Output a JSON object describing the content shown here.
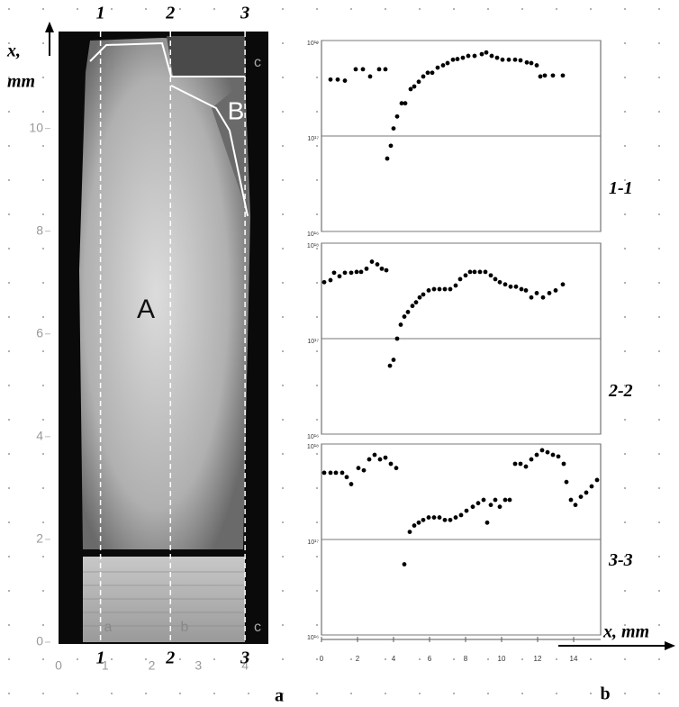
{
  "micrograph": {
    "ylabel": [
      "x,",
      "mm"
    ],
    "ylim": [
      0,
      11.8
    ],
    "yticks": [
      0,
      2,
      4,
      6,
      8,
      10
    ],
    "xlim": [
      0,
      4.5
    ],
    "xticks": [
      0,
      1,
      2,
      3,
      4
    ],
    "sections": [
      {
        "x": 0.9,
        "label": "1"
      },
      {
        "x": 2.4,
        "label": "2"
      },
      {
        "x": 4,
        "label": "3"
      }
    ],
    "zones": [
      "A",
      "B"
    ],
    "region_labels": [
      "a",
      "c",
      "a",
      "b",
      "c"
    ],
    "panel_label": "a"
  },
  "panel_label": "b",
  "chart_data": [
    {
      "type": "scatter",
      "title": "1-1",
      "color": "#000000",
      "ylog": true,
      "grid": true,
      "xlim": [
        0,
        15.5
      ],
      "ylim": [
        1e+16,
        1e+18
      ],
      "yticks": [
        {
          "value": 1e+16,
          "label": "10¹⁶"
        },
        {
          "value": 1e+17,
          "label": "10¹⁷"
        },
        {
          "value": 1e+18,
          "label": "10¹⁸"
        }
      ],
      "x": [
        0.5,
        0.9,
        1.3,
        1.9,
        2.3,
        2.7,
        3.2,
        3.55,
        3.65,
        3.85,
        4.0,
        4.2,
        4.45,
        4.65,
        4.95,
        5.15,
        5.4,
        5.65,
        5.9,
        6.15,
        6.45,
        6.75,
        7.0,
        7.3,
        7.55,
        7.85,
        8.15,
        8.5,
        8.9,
        9.15,
        9.45,
        9.75,
        10.05,
        10.4,
        10.75,
        11.05,
        11.4,
        11.65,
        11.95,
        12.15,
        12.4,
        12.85,
        13.4
      ],
      "values": [
        3.9e+17,
        3.9e+17,
        3.8e+17,
        5e+17,
        5e+17,
        4.2e+17,
        5e+17,
        5e+17,
        5.8e+16,
        7.9e+16,
        1.2e+17,
        1.6e+17,
        2.2e+17,
        2.2e+17,
        3.1e+17,
        3.3e+17,
        3.7e+17,
        4.2e+17,
        4.6e+17,
        4.6e+17,
        5.2e+17,
        5.5e+17,
        5.8e+17,
        6.3e+17,
        6.4e+17,
        6.6e+17,
        6.9e+17,
        6.9e+17,
        7.2e+17,
        7.5e+17,
        6.9e+17,
        6.6e+17,
        6.3e+17,
        6.3e+17,
        6.3e+17,
        6.2e+17,
        5.9e+17,
        5.8e+17,
        5.5e+17,
        4.2e+17,
        4.3e+17,
        4.3e+17,
        4.3e+17
      ]
    },
    {
      "type": "scatter",
      "title": "2-2",
      "color": "#000000",
      "ylog": true,
      "grid": true,
      "xlim": [
        0,
        15.5
      ],
      "ylim": [
        1e+16,
        1e+18
      ],
      "yticks": [
        {
          "value": 1e+16,
          "label": "10¹⁶"
        },
        {
          "value": 1e+17,
          "label": "10¹⁷"
        },
        {
          "value": 1e+18,
          "label": "10¹⁸"
        }
      ],
      "x": [
        0.15,
        0.5,
        0.7,
        1.0,
        1.3,
        1.65,
        1.95,
        2.2,
        2.5,
        2.8,
        3.1,
        3.35,
        3.6,
        3.8,
        4.0,
        4.2,
        4.4,
        4.6,
        4.8,
        5.05,
        5.25,
        5.45,
        5.65,
        5.95,
        6.25,
        6.55,
        6.85,
        7.15,
        7.45,
        7.7,
        8.0,
        8.25,
        8.5,
        8.8,
        9.1,
        9.4,
        9.65,
        9.9,
        10.2,
        10.5,
        10.8,
        11.1,
        11.35,
        11.65,
        11.95,
        12.3,
        12.65,
        13.0,
        13.4
      ],
      "values": [
        3.9e+17,
        4.1e+17,
        4.9e+17,
        4.5e+17,
        4.9e+17,
        4.9e+17,
        5e+17,
        5e+17,
        5.4e+17,
        6.4e+17,
        6e+17,
        5.4e+17,
        5.2e+17,
        5.2e+16,
        6e+16,
        1e+17,
        1.4e+17,
        1.7e+17,
        1.9e+17,
        2.2e+17,
        2.4e+17,
        2.7e+17,
        2.9e+17,
        3.2e+17,
        3.3e+17,
        3.3e+17,
        3.3e+17,
        3.3e+17,
        3.6e+17,
        4.2e+17,
        4.6e+17,
        5e+17,
        5e+17,
        5e+17,
        5e+17,
        4.6e+17,
        4.2e+17,
        3.9e+17,
        3.7e+17,
        3.5e+17,
        3.5e+17,
        3.3e+17,
        3.2e+17,
        2.7e+17,
        3e+17,
        2.7e+17,
        3e+17,
        3.2e+17,
        3.7e+17
      ]
    },
    {
      "type": "scatter",
      "title": "3-3",
      "color": "#000000",
      "ylog": true,
      "grid": true,
      "xlabel": "x, mm",
      "xlim": [
        0,
        15.5
      ],
      "ylim": [
        1e+16,
        1e+18
      ],
      "yticks": [
        {
          "value": 1e+16,
          "label": "10¹⁶"
        },
        {
          "value": 1e+17,
          "label": "10¹⁷"
        },
        {
          "value": 1e+18,
          "label": "10¹⁸"
        }
      ],
      "xticks": [
        0,
        2,
        4,
        6,
        8,
        10,
        12,
        14
      ],
      "x": [
        0.15,
        0.5,
        0.8,
        1.15,
        1.4,
        1.65,
        2.05,
        2.35,
        2.65,
        2.95,
        3.25,
        3.55,
        3.85,
        4.15,
        4.6,
        4.9,
        5.15,
        5.4,
        5.65,
        5.95,
        6.25,
        6.55,
        6.85,
        7.15,
        7.45,
        7.75,
        8.05,
        8.4,
        8.7,
        9.0,
        9.2,
        9.4,
        9.65,
        9.9,
        10.2,
        10.45,
        10.75,
        11.05,
        11.35,
        11.65,
        11.95,
        12.25,
        12.55,
        12.85,
        13.15,
        13.45,
        13.6,
        13.85,
        14.1,
        14.4,
        14.7,
        15.0,
        15.3
      ],
      "values": [
        5e+17,
        5e+17,
        5e+17,
        5e+17,
        4.5e+17,
        3.8e+17,
        5.6e+17,
        5.3e+17,
        6.9e+17,
        7.7e+17,
        6.9e+17,
        7.2e+17,
        6.2e+17,
        5.6e+17,
        5.5e+16,
        1.2e+17,
        1.4e+17,
        1.5e+17,
        1.6e+17,
        1.7e+17,
        1.7e+17,
        1.7e+17,
        1.6e+17,
        1.6e+17,
        1.7e+17,
        1.8e+17,
        2e+17,
        2.2e+17,
        2.4e+17,
        2.6e+17,
        1.5e+17,
        2.3e+17,
        2.6e+17,
        2.2e+17,
        2.6e+17,
        2.6e+17,
        6.2e+17,
        6.2e+17,
        5.8e+17,
        6.9e+17,
        7.7e+17,
        8.6e+17,
        8.2e+17,
        7.7e+17,
        7.4e+17,
        6.2e+17,
        4e+17,
        2.6e+17,
        2.3e+17,
        2.8e+17,
        3.1e+17,
        3.6e+17,
        4.2e+17
      ]
    }
  ]
}
